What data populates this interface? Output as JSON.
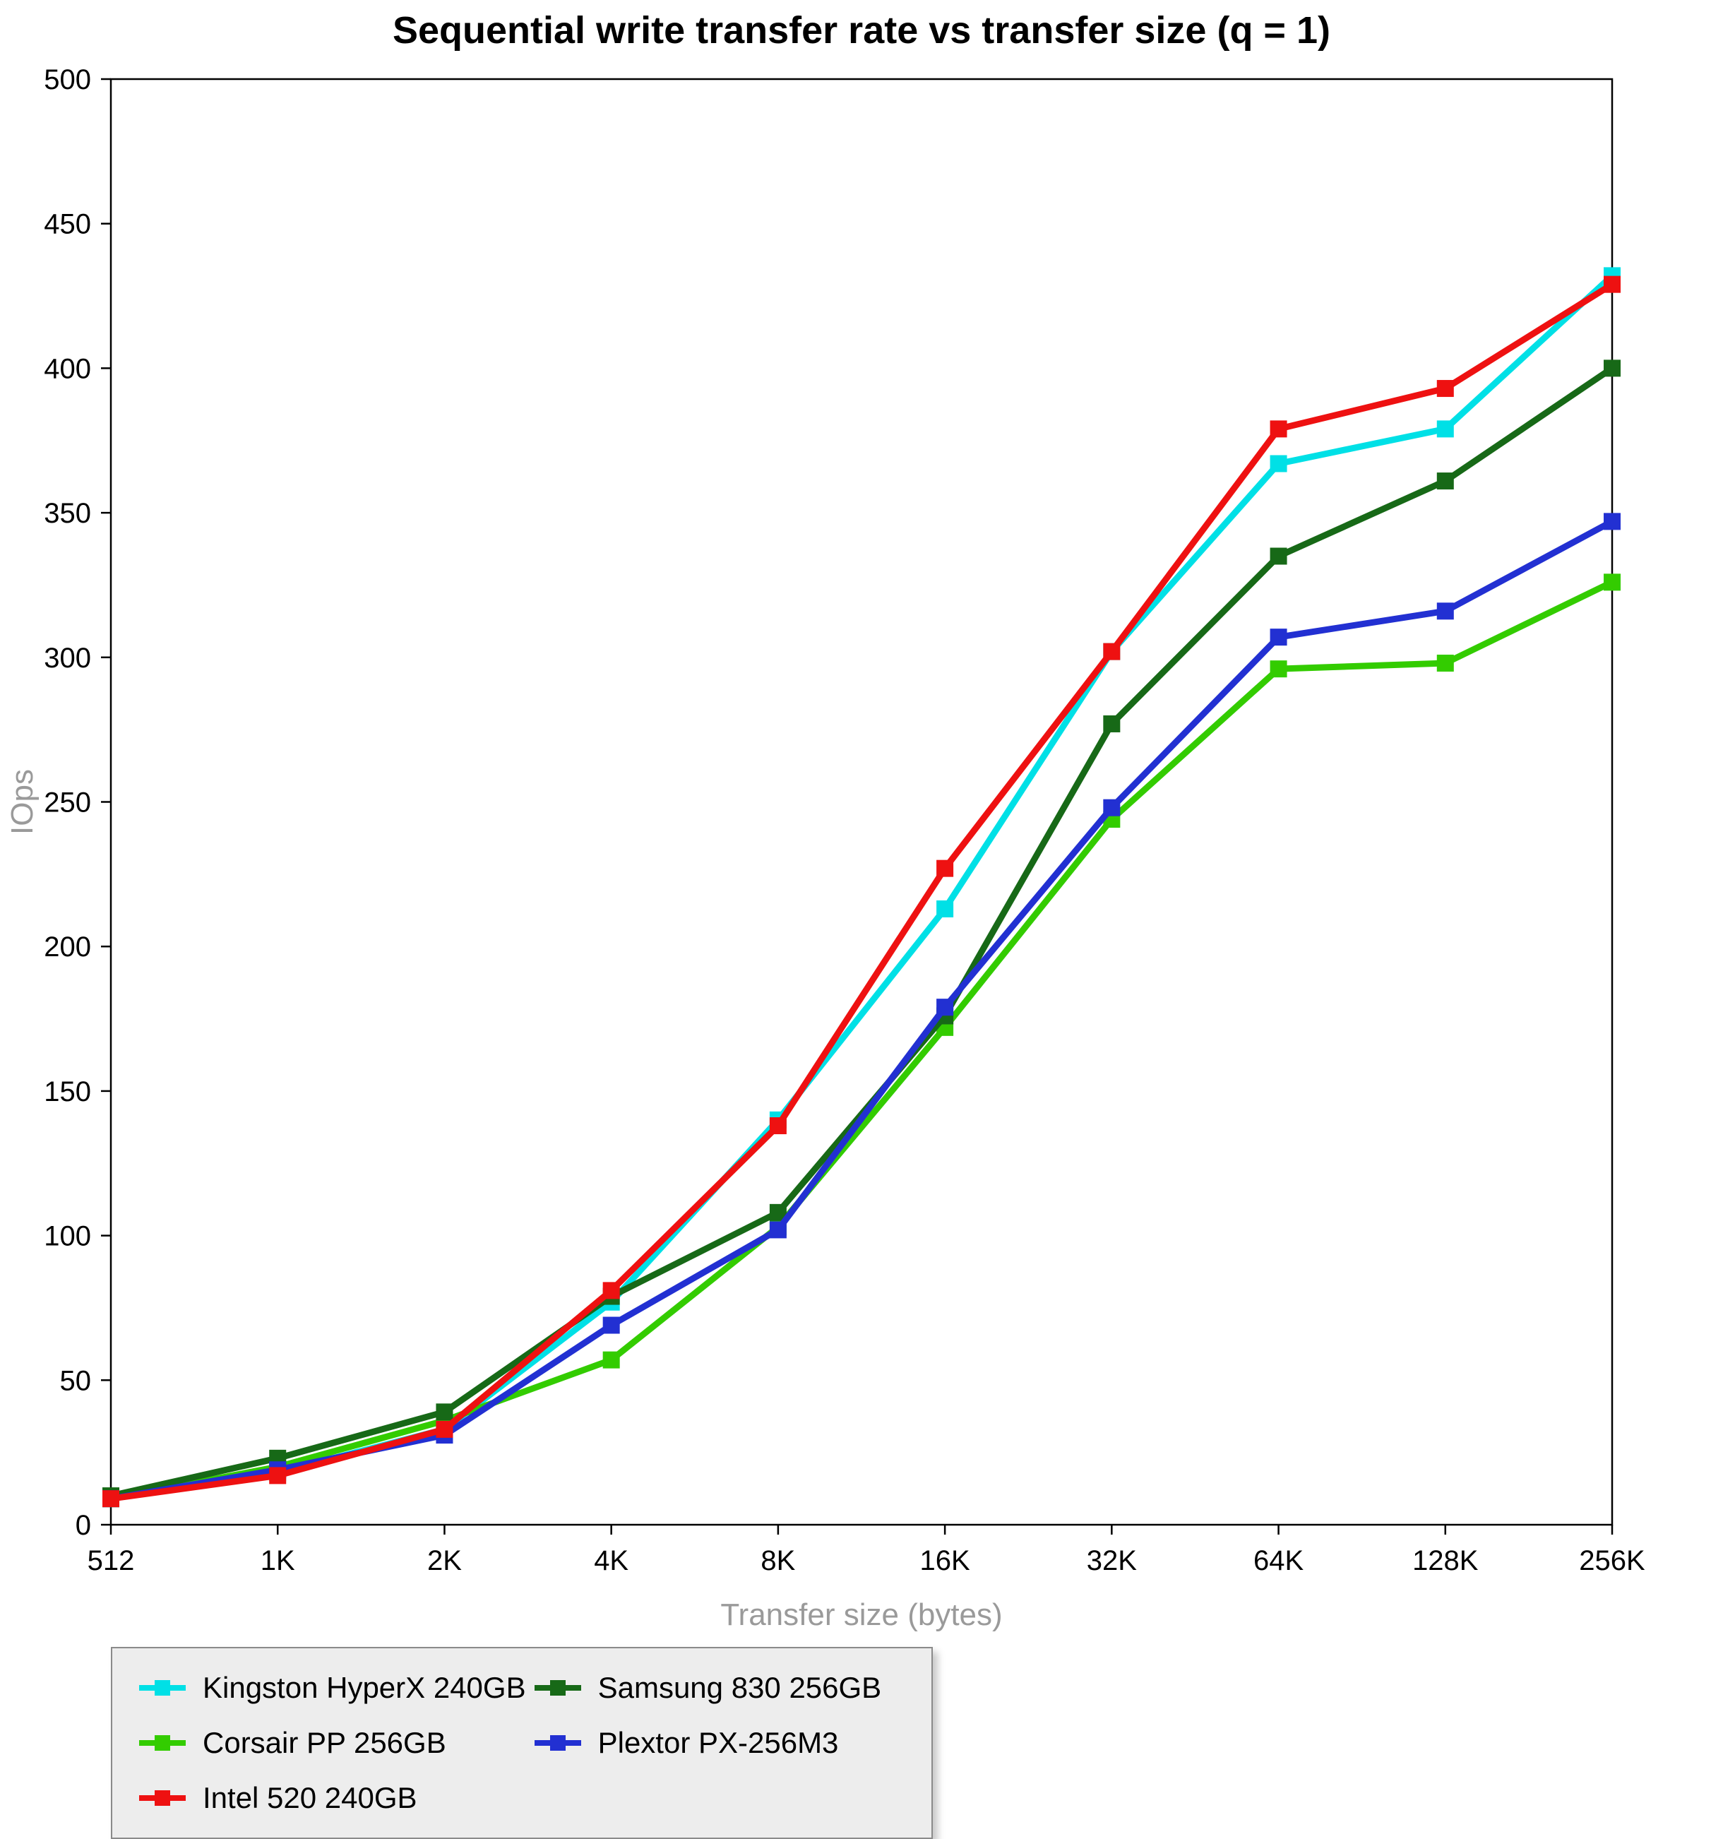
{
  "chart_data": {
    "type": "line",
    "title": "Sequential write transfer rate vs transfer size (q = 1)",
    "xlabel": "Transfer size (bytes)",
    "ylabel": "IOps",
    "categories": [
      "512",
      "1K",
      "2K",
      "4K",
      "8K",
      "16K",
      "32K",
      "64K",
      "128K",
      "256K"
    ],
    "ylim": [
      0,
      500
    ],
    "yticks": [
      0,
      50,
      100,
      150,
      200,
      250,
      300,
      350,
      400,
      450,
      500
    ],
    "grid": false,
    "marker": "square",
    "legend_position": "bottom",
    "legend_columns": 2,
    "legend_order": [
      0,
      2,
      1,
      3,
      4
    ],
    "series": [
      {
        "name": "Kingston HyperX 240GB",
        "color": "#00e0e6",
        "values": [
          9,
          18,
          33,
          77,
          140,
          213,
          302,
          367,
          379,
          432
        ]
      },
      {
        "name": "Corsair PP 256GB",
        "color": "#33cc00",
        "values": [
          9,
          20,
          36,
          57,
          103,
          172,
          244,
          296,
          298,
          326
        ]
      },
      {
        "name": "Samsung 830 256GB",
        "color": "#176917",
        "values": [
          10,
          23,
          39,
          79,
          108,
          176,
          277,
          335,
          361,
          400
        ]
      },
      {
        "name": "Plextor PX-256M3",
        "color": "#2230d2",
        "values": [
          9,
          19,
          31,
          69,
          102,
          179,
          248,
          307,
          316,
          347
        ]
      },
      {
        "name": "Intel 520 240GB",
        "color": "#ee1111",
        "values": [
          9,
          17,
          33,
          81,
          138,
          227,
          302,
          379,
          393,
          429
        ]
      }
    ]
  }
}
